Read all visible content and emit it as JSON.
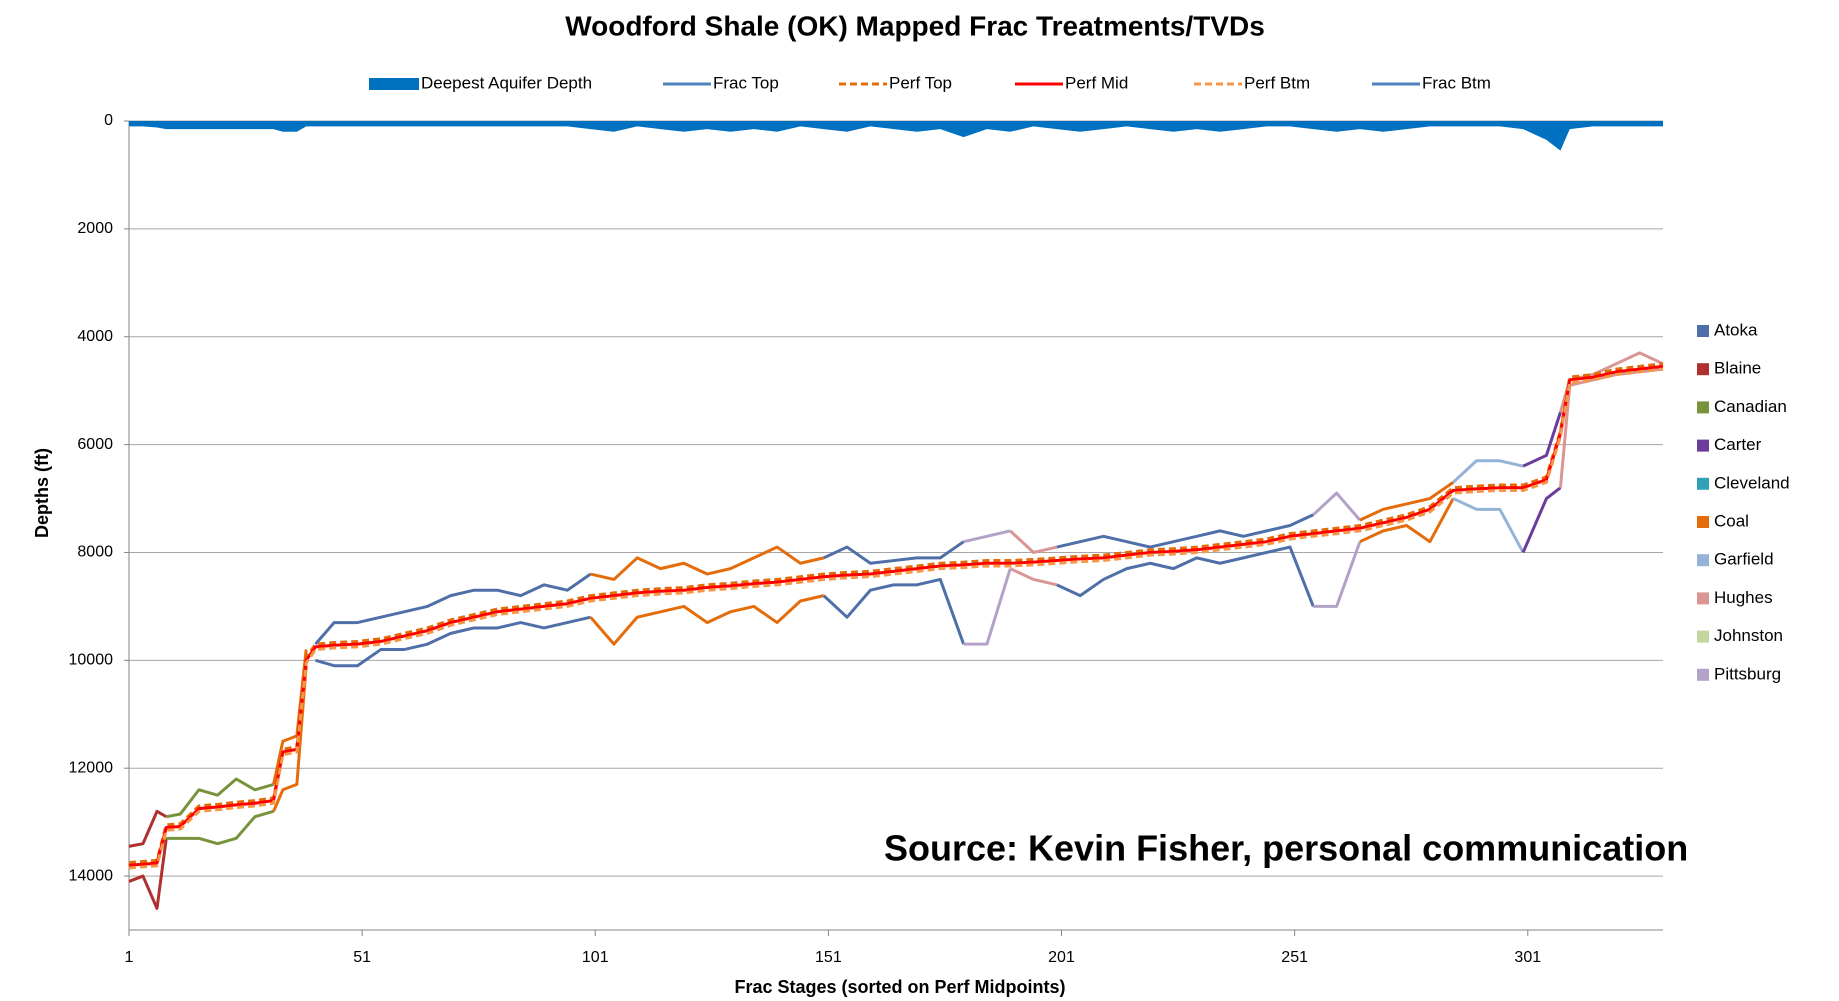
{
  "chart_data": {
    "type": "line",
    "title": "Woodford Shale (OK) Mapped Frac Treatments/TVDs",
    "x_label": "Frac Stages  (sorted on  Perf Midpoints)",
    "y_label": "Depths (ft)",
    "annotation": "Source: Kevin Fisher, personal communication",
    "xlim": [
      1,
      330
    ],
    "xticks": [
      1,
      51,
      101,
      151,
      201,
      251,
      301
    ],
    "ylim": [
      0,
      15000
    ],
    "y_reversed": true,
    "yticks": [
      0,
      2000,
      4000,
      6000,
      8000,
      10000,
      12000,
      14000
    ],
    "grid": true,
    "x": [
      1,
      4,
      7,
      9,
      12,
      16,
      20,
      24,
      28,
      32,
      34,
      37,
      39,
      41,
      45,
      50,
      55,
      60,
      65,
      70,
      75,
      80,
      85,
      90,
      95,
      100,
      105,
      110,
      115,
      120,
      125,
      130,
      135,
      140,
      145,
      150,
      155,
      160,
      165,
      170,
      175,
      180,
      185,
      190,
      195,
      200,
      205,
      210,
      215,
      220,
      225,
      230,
      235,
      240,
      245,
      250,
      255,
      260,
      265,
      270,
      275,
      280,
      285,
      290,
      295,
      300,
      305,
      308,
      310,
      315,
      320,
      325,
      330
    ],
    "series": [
      {
        "name": "Deepest Aquifer Depth",
        "color": "#0070c0",
        "fill": true,
        "values": [
          100,
          100,
          120,
          150,
          150,
          150,
          150,
          150,
          150,
          150,
          200,
          200,
          100,
          100,
          100,
          100,
          100,
          100,
          100,
          100,
          100,
          100,
          100,
          100,
          100,
          150,
          200,
          100,
          150,
          200,
          150,
          200,
          150,
          200,
          100,
          150,
          200,
          100,
          150,
          200,
          150,
          300,
          150,
          200,
          100,
          150,
          200,
          150,
          100,
          150,
          200,
          150,
          200,
          150,
          100,
          100,
          150,
          200,
          150,
          200,
          150,
          100,
          100,
          100,
          100,
          150,
          350,
          550,
          150,
          100,
          100,
          100,
          100
        ]
      },
      {
        "name": "Frac Top",
        "color": "#4f81bd",
        "by_county": true,
        "values": [
          13450,
          13400,
          12800,
          12900,
          12850,
          12400,
          12500,
          12200,
          12400,
          12300,
          11500,
          11400,
          9800,
          9700,
          9300,
          9300,
          9200,
          9100,
          9000,
          8800,
          8700,
          8700,
          8800,
          8600,
          8700,
          8400,
          8500,
          8100,
          8300,
          8200,
          8400,
          8300,
          8100,
          7900,
          8200,
          8100,
          7900,
          8200,
          8150,
          8100,
          8100,
          7800,
          7700,
          7600,
          8000,
          7900,
          7800,
          7700,
          7800,
          7900,
          7800,
          7700,
          7600,
          7700,
          7600,
          7500,
          7300,
          6900,
          7400,
          7200,
          7100,
          7000,
          6700,
          6300,
          6300,
          6400,
          6200,
          5400,
          4800,
          4700,
          4500,
          4300,
          4500
        ]
      },
      {
        "name": "Perf Top",
        "color": "#e36c09",
        "dashed": true,
        "values": [
          13750,
          13730,
          13710,
          13050,
          13030,
          12700,
          12670,
          12630,
          12600,
          12550,
          11650,
          11600,
          9950,
          9700,
          9670,
          9650,
          9600,
          9500,
          9400,
          9250,
          9150,
          9050,
          9000,
          8950,
          8900,
          8800,
          8750,
          8700,
          8670,
          8650,
          8600,
          8570,
          8530,
          8500,
          8450,
          8400,
          8370,
          8350,
          8300,
          8250,
          8200,
          8180,
          8150,
          8150,
          8130,
          8100,
          8070,
          8050,
          8000,
          7950,
          7930,
          7900,
          7850,
          7800,
          7750,
          7650,
          7600,
          7550,
          7500,
          7400,
          7300,
          7150,
          6800,
          6770,
          6750,
          6750,
          6600,
          5750,
          4750,
          4700,
          4600,
          4550,
          4500
        ]
      },
      {
        "name": "Perf Mid",
        "color": "#ff0000",
        "values": [
          13800,
          13780,
          13760,
          13100,
          13080,
          12750,
          12720,
          12680,
          12650,
          12600,
          11700,
          11650,
          10000,
          9750,
          9720,
          9700,
          9650,
          9550,
          9450,
          9300,
          9200,
          9100,
          9050,
          9000,
          8950,
          8850,
          8800,
          8750,
          8720,
          8700,
          8650,
          8620,
          8580,
          8550,
          8500,
          8450,
          8420,
          8400,
          8350,
          8300,
          8250,
          8230,
          8200,
          8200,
          8180,
          8150,
          8120,
          8100,
          8050,
          8000,
          7980,
          7950,
          7900,
          7850,
          7800,
          7700,
          7650,
          7600,
          7550,
          7450,
          7350,
          7200,
          6850,
          6820,
          6800,
          6800,
          6650,
          5800,
          4800,
          4750,
          4650,
          4600,
          4550
        ]
      },
      {
        "name": "Perf Btm",
        "color": "#f79646",
        "dashed": true,
        "values": [
          13850,
          13830,
          13810,
          13150,
          13130,
          12800,
          12770,
          12730,
          12700,
          12650,
          11750,
          11700,
          10050,
          9800,
          9770,
          9750,
          9700,
          9600,
          9500,
          9350,
          9250,
          9150,
          9100,
          9050,
          9000,
          8900,
          8850,
          8800,
          8770,
          8750,
          8700,
          8670,
          8630,
          8600,
          8550,
          8500,
          8470,
          8450,
          8400,
          8350,
          8300,
          8280,
          8250,
          8250,
          8230,
          8200,
          8170,
          8150,
          8100,
          8050,
          8030,
          8000,
          7950,
          7900,
          7850,
          7750,
          7700,
          7650,
          7600,
          7500,
          7400,
          7250,
          6900,
          6870,
          6850,
          6850,
          6700,
          5850,
          4850,
          4800,
          4700,
          4650,
          4600
        ]
      },
      {
        "name": "Frac Btm",
        "color": "#4f81bd",
        "by_county": true,
        "values": [
          14100,
          14000,
          14600,
          13300,
          13300,
          13300,
          13400,
          13300,
          12900,
          12800,
          12400,
          12300,
          10100,
          10000,
          10100,
          10100,
          9800,
          9800,
          9700,
          9500,
          9400,
          9400,
          9300,
          9400,
          9300,
          9200,
          9700,
          9200,
          9100,
          9000,
          9300,
          9100,
          9000,
          9300,
          8900,
          8800,
          9200,
          8700,
          8600,
          8600,
          8500,
          9700,
          9700,
          8300,
          8500,
          8600,
          8800,
          8500,
          8300,
          8200,
          8300,
          8100,
          8200,
          8100,
          8000,
          7900,
          9000,
          9000,
          7800,
          7600,
          7500,
          7800,
          7000,
          7200,
          7200,
          8000,
          7000,
          6800,
          4900,
          4800,
          4700,
          4650,
          4600
        ]
      }
    ],
    "counties": [
      {
        "name": "Atoka",
        "color": "#4f6fa8"
      },
      {
        "name": "Blaine",
        "color": "#b03030"
      },
      {
        "name": "Canadian",
        "color": "#77933c"
      },
      {
        "name": "Carter",
        "color": "#6a3d9a"
      },
      {
        "name": "Cleveland",
        "color": "#31a1b5"
      },
      {
        "name": "Coal",
        "color": "#e46c0a"
      },
      {
        "name": "Garfield",
        "color": "#95b3d7"
      },
      {
        "name": "Hughes",
        "color": "#d99694"
      },
      {
        "name": "Johnston",
        "color": "#c3d69b"
      },
      {
        "name": "Pittsburg",
        "color": "#b3a2c7"
      }
    ],
    "county_segments": [
      {
        "county": 1,
        "from": 1,
        "to": 9
      },
      {
        "county": 2,
        "from": 9,
        "to": 32
      },
      {
        "county": 5,
        "from": 32,
        "to": 40
      },
      {
        "county": 0,
        "from": 40,
        "to": 100
      },
      {
        "county": 5,
        "from": 100,
        "to": 150
      },
      {
        "county": 0,
        "from": 150,
        "to": 180
      },
      {
        "county": 9,
        "from": 180,
        "to": 190
      },
      {
        "county": 7,
        "from": 190,
        "to": 200
      },
      {
        "county": 0,
        "from": 200,
        "to": 255
      },
      {
        "county": 9,
        "from": 255,
        "to": 265
      },
      {
        "county": 5,
        "from": 265,
        "to": 285
      },
      {
        "county": 6,
        "from": 285,
        "to": 300
      },
      {
        "county": 3,
        "from": 300,
        "to": 308
      },
      {
        "county": 7,
        "from": 308,
        "to": 330
      }
    ]
  }
}
